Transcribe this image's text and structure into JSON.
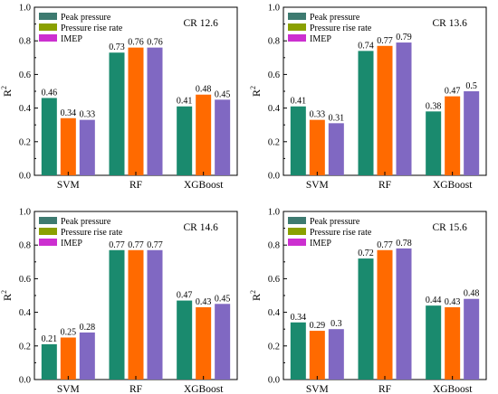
{
  "chart_data": [
    {
      "type": "bar",
      "title": "CR 12.6",
      "xlabel": "",
      "ylabel": "R",
      "ylabel_sup": "2",
      "ylim": [
        0,
        1.0
      ],
      "yticks": [
        "0.0",
        "0.2",
        "0.4",
        "0.6",
        "0.8",
        "1.0"
      ],
      "categories": [
        "SVM",
        "RF",
        "XGBoost"
      ],
      "series": [
        {
          "name": "Peak pressure",
          "values": [
            0.46,
            0.73,
            0.41
          ],
          "labels": [
            "0.46",
            "0.73",
            "0.41"
          ]
        },
        {
          "name": "Pressure rise rate",
          "values": [
            0.34,
            0.76,
            0.48
          ],
          "labels": [
            "0.34",
            "0.76",
            "0.48"
          ]
        },
        {
          "name": "IMEP",
          "values": [
            0.33,
            0.76,
            0.45
          ],
          "labels": [
            "0.33",
            "0.76",
            "0.45"
          ]
        }
      ],
      "legend": "top-left"
    },
    {
      "type": "bar",
      "title": "CR 13.6",
      "xlabel": "",
      "ylabel": "R",
      "ylabel_sup": "2",
      "ylim": [
        0,
        1.0
      ],
      "yticks": [
        "0.0",
        "0.2",
        "0.4",
        "0.6",
        "0.8",
        "1.0"
      ],
      "categories": [
        "SVM",
        "RF",
        "XGBoost"
      ],
      "series": [
        {
          "name": "Peak pressure",
          "values": [
            0.41,
            0.74,
            0.38
          ],
          "labels": [
            "0.41",
            "0.74",
            "0.38"
          ]
        },
        {
          "name": "Pressure rise rate",
          "values": [
            0.33,
            0.77,
            0.47
          ],
          "labels": [
            "0.33",
            "0.77",
            "0.47"
          ]
        },
        {
          "name": "IMEP",
          "values": [
            0.31,
            0.79,
            0.5
          ],
          "labels": [
            "0.31",
            "0.79",
            "0.5"
          ]
        }
      ],
      "legend": "top-left"
    },
    {
      "type": "bar",
      "title": "CR 14.6",
      "xlabel": "",
      "ylabel": "R",
      "ylabel_sup": "2",
      "ylim": [
        0,
        1.0
      ],
      "yticks": [
        "0.0",
        "0.2",
        "0.4",
        "0.6",
        "0.8",
        "1.0"
      ],
      "categories": [
        "SVM",
        "RF",
        "XGBoost"
      ],
      "series": [
        {
          "name": "Peak pressure",
          "values": [
            0.21,
            0.77,
            0.47
          ],
          "labels": [
            "0.21",
            "0.77",
            "0.47"
          ]
        },
        {
          "name": "Pressure rise rate",
          "values": [
            0.25,
            0.77,
            0.43
          ],
          "labels": [
            "0.25",
            "0.77",
            "0.43"
          ]
        },
        {
          "name": "IMEP",
          "values": [
            0.28,
            0.77,
            0.45
          ],
          "labels": [
            "0.28",
            "0.77",
            "0.45"
          ]
        }
      ],
      "legend": "top-left"
    },
    {
      "type": "bar",
      "title": "CR 15.6",
      "xlabel": "",
      "ylabel": "R",
      "ylabel_sup": "2",
      "ylim": [
        0,
        1.0
      ],
      "yticks": [
        "0.0",
        "0.2",
        "0.4",
        "0.6",
        "0.8",
        "1.0"
      ],
      "categories": [
        "SVM",
        "RF",
        "XGBoost"
      ],
      "series": [
        {
          "name": "Peak pressure",
          "values": [
            0.34,
            0.72,
            0.44
          ],
          "labels": [
            "0.34",
            "0.72",
            "0.44"
          ]
        },
        {
          "name": "Pressure rise rate",
          "values": [
            0.29,
            0.77,
            0.43
          ],
          "labels": [
            "0.29",
            "0.77",
            "0.43"
          ]
        },
        {
          "name": "IMEP",
          "values": [
            0.3,
            0.78,
            0.48
          ],
          "labels": [
            "0.3",
            "0.78",
            "0.48"
          ]
        }
      ],
      "legend": "top-left"
    }
  ],
  "colors": {
    "peak_pressure": "#1a8a6e",
    "pressure_rise_rate": "#ff6a00",
    "imep": "#8068c2",
    "legend_peak_pressure": "#3d7a70",
    "legend_pressure_rise_rate": "#8aa000",
    "legend_imep": "#cc2fd0"
  }
}
